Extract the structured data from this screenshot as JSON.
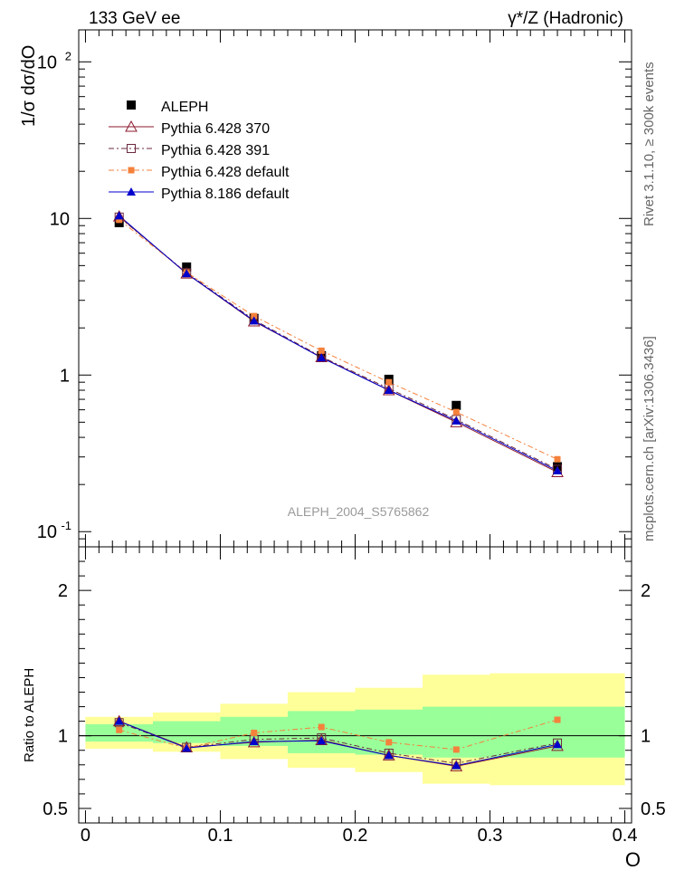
{
  "header": {
    "energy_label": "133 GeV ee",
    "process_label": "γ*/Z (Hadronic)"
  },
  "side_labels": {
    "rivet": "Rivet 3.1.10, ≥ 300k events",
    "mcplots": "mcplots.cern.ch [arXiv:1306.3436]"
  },
  "chart_data": [
    {
      "type": "line",
      "panel": "main",
      "title": "",
      "ylabel": "1/σ dσ/dO",
      "yscale": "log",
      "ylim": [
        0.08,
        160
      ],
      "xlim": [
        -0.005,
        0.405
      ],
      "y_ticks": [
        {
          "value": 0.1,
          "label": "10^-1"
        },
        {
          "value": 1,
          "label": "1"
        },
        {
          "value": 10,
          "label": "10"
        },
        {
          "value": 100,
          "label": "10^2"
        }
      ],
      "watermark": "ALEPH_2004_S5765862",
      "x": [
        0.025,
        0.075,
        0.125,
        0.175,
        0.225,
        0.275,
        0.35
      ],
      "data": {
        "name": "ALEPH",
        "values": [
          9.4,
          4.9,
          2.3,
          1.33,
          0.94,
          0.64,
          0.26
        ],
        "color": "#000000"
      },
      "series": [
        {
          "name": "Pythia 6.428 370",
          "color": "#8b1a2e",
          "marker": "open-triangle",
          "dash": "",
          "values": [
            10.3,
            4.45,
            2.2,
            1.3,
            0.8,
            0.5,
            0.24
          ]
        },
        {
          "name": "Pythia 6.428 391",
          "color": "#6b2a3e",
          "marker": "open-square",
          "dash": "6,3,2,3",
          "values": [
            10.2,
            4.5,
            2.25,
            1.31,
            0.82,
            0.52,
            0.25
          ]
        },
        {
          "name": "Pythia 6.428 default",
          "color": "#f4813c",
          "marker": "filled-square",
          "dash": "6,3,2,3",
          "values": [
            9.8,
            4.52,
            2.38,
            1.43,
            0.9,
            0.58,
            0.29
          ]
        },
        {
          "name": "Pythia 8.186 default",
          "color": "#0000cc",
          "marker": "filled-triangle",
          "dash": "",
          "values": [
            10.4,
            4.45,
            2.22,
            1.29,
            0.8,
            0.51,
            0.245
          ]
        }
      ]
    },
    {
      "type": "line",
      "panel": "ratio",
      "ylabel": "Ratio to ALEPH",
      "xlabel": "O",
      "ylim": [
        0.4,
        2.3
      ],
      "xlim": [
        -0.005,
        0.405
      ],
      "y_ticks": [
        0.5,
        1,
        2
      ],
      "y_tick_labels": [
        "0.5",
        "1",
        "2"
      ],
      "x_ticks": [
        0,
        0.1,
        0.2,
        0.3,
        0.4
      ],
      "x_tick_labels": [
        "0",
        "0.1",
        "0.2",
        "0.3",
        "0.4"
      ],
      "reference_line": 1,
      "bands": [
        {
          "x0": 0.0,
          "x1": 0.05,
          "green": [
            0.96,
            1.08
          ],
          "yellow": [
            0.91,
            1.13
          ]
        },
        {
          "x0": 0.05,
          "x1": 0.1,
          "green": [
            0.95,
            1.1
          ],
          "yellow": [
            0.89,
            1.16
          ]
        },
        {
          "x0": 0.1,
          "x1": 0.15,
          "green": [
            0.93,
            1.13
          ],
          "yellow": [
            0.84,
            1.22
          ]
        },
        {
          "x0": 0.15,
          "x1": 0.2,
          "green": [
            0.88,
            1.17
          ],
          "yellow": [
            0.78,
            1.3
          ]
        },
        {
          "x0": 0.2,
          "x1": 0.25,
          "green": [
            0.87,
            1.18
          ],
          "yellow": [
            0.75,
            1.33
          ]
        },
        {
          "x0": 0.25,
          "x1": 0.3,
          "green": [
            0.85,
            1.2
          ],
          "yellow": [
            0.67,
            1.42
          ]
        },
        {
          "x0": 0.3,
          "x1": 0.4,
          "green": [
            0.85,
            1.2
          ],
          "yellow": [
            0.66,
            1.43
          ]
        }
      ],
      "x": [
        0.025,
        0.075,
        0.125,
        0.175,
        0.225,
        0.275,
        0.35
      ],
      "series": [
        {
          "name": "Pythia 6.428 370",
          "values": [
            1.1,
            0.92,
            0.955,
            0.97,
            0.865,
            0.79,
            0.93
          ]
        },
        {
          "name": "Pythia 6.428 391",
          "values": [
            1.09,
            0.92,
            0.975,
            0.985,
            0.88,
            0.81,
            0.95
          ]
        },
        {
          "name": "Pythia 6.428 default",
          "values": [
            1.04,
            0.915,
            1.02,
            1.06,
            0.955,
            0.905,
            1.11
          ]
        },
        {
          "name": "Pythia 8.186 default",
          "values": [
            1.1,
            0.915,
            0.96,
            0.965,
            0.865,
            0.795,
            0.94
          ]
        }
      ]
    }
  ]
}
